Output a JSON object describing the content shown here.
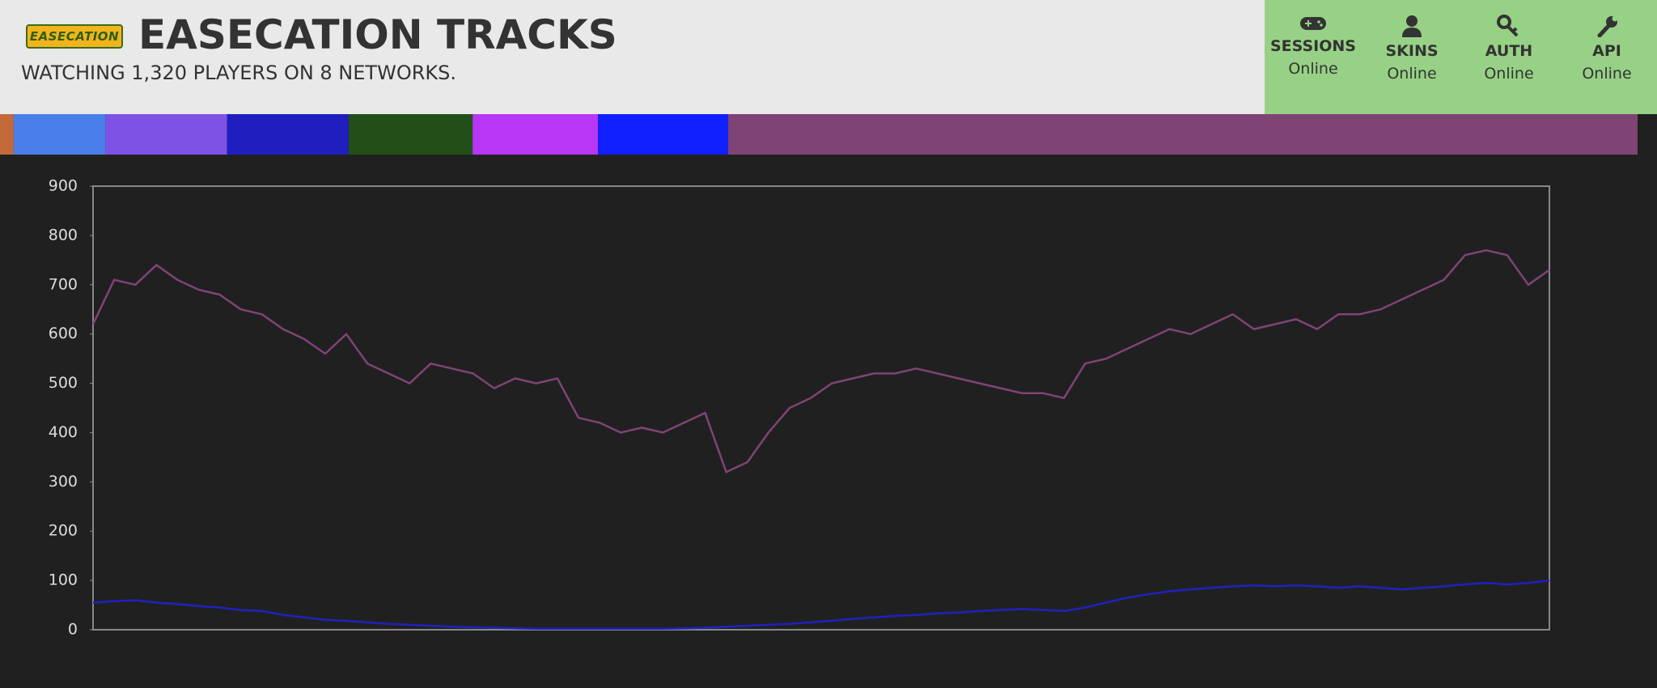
{
  "header": {
    "logo": "EASECATION",
    "title": "EASECATION TRACKS",
    "subtitle": "WATCHING 1,320 PLAYERS ON 8 NETWORKS."
  },
  "status": [
    {
      "label": "SESSIONS",
      "state": "Online"
    },
    {
      "label": "SKINS",
      "state": "Online"
    },
    {
      "label": "AUTH",
      "state": "Online"
    },
    {
      "label": "API",
      "state": "Online"
    }
  ],
  "networks": [
    {
      "color": "#c46a3a",
      "players": 11
    },
    {
      "color": "#4a7ee8",
      "players": 74
    },
    {
      "color": "#7f52e6",
      "players": 98
    },
    {
      "color": "#1f1fbf",
      "players": 98
    },
    {
      "color": "#224f18",
      "players": 100
    },
    {
      "color": "#b836f5",
      "players": 101
    },
    {
      "color": "#1020ff",
      "players": 105
    },
    {
      "color": "#7f4376",
      "players": 733
    }
  ],
  "chart_data": {
    "type": "line",
    "ylim": [
      0,
      900
    ],
    "yticks": [
      0,
      100,
      200,
      300,
      400,
      500,
      600,
      700,
      800,
      900
    ],
    "series": [
      {
        "color": "#7f4376",
        "values": [
          620,
          710,
          700,
          740,
          710,
          690,
          680,
          650,
          640,
          610,
          590,
          560,
          600,
          540,
          520,
          500,
          540,
          530,
          520,
          490,
          510,
          500,
          510,
          430,
          420,
          400,
          410,
          400,
          420,
          440,
          320,
          340,
          400,
          450,
          470,
          500,
          510,
          520,
          520,
          530,
          520,
          510,
          500,
          490,
          480,
          480,
          470,
          540,
          550,
          570,
          590,
          610,
          600,
          620,
          640,
          610,
          620,
          630,
          610,
          640,
          640,
          650,
          670,
          690,
          710,
          760,
          770,
          760,
          700,
          730
        ]
      },
      {
        "color": "#2020c0",
        "values": [
          55,
          58,
          60,
          55,
          52,
          48,
          45,
          40,
          38,
          30,
          25,
          20,
          18,
          15,
          12,
          10,
          8,
          6,
          5,
          4,
          3,
          2,
          2,
          2,
          2,
          2,
          2,
          2,
          3,
          4,
          6,
          8,
          10,
          12,
          15,
          18,
          22,
          25,
          28,
          30,
          33,
          35,
          38,
          40,
          42,
          40,
          38,
          45,
          55,
          65,
          72,
          78,
          82,
          85,
          88,
          90,
          88,
          90,
          88,
          85,
          88,
          85,
          82,
          85,
          88,
          92,
          95,
          92,
          95,
          100
        ]
      }
    ]
  }
}
